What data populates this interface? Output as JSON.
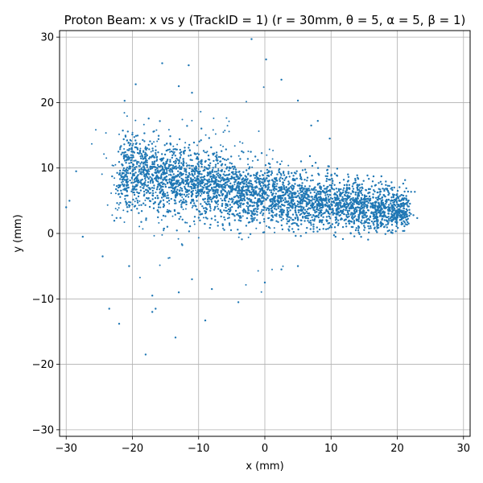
{
  "chart_data": {
    "type": "scatter",
    "title": "Proton Beam: x vs y (TrackID = 1) (r = 30mm, θ = 5, α = 5, β = 1)",
    "xlabel": "x (mm)",
    "ylabel": "y (mm)",
    "xlim": [
      -31,
      31
    ],
    "ylim": [
      -31,
      31
    ],
    "xticks": [
      -30,
      -20,
      -10,
      0,
      10,
      20,
      30
    ],
    "yticks": [
      -30,
      -20,
      -10,
      0,
      10,
      20,
      30
    ],
    "xtick_labels": [
      "−30",
      "−20",
      "−10",
      "0",
      "10",
      "20",
      "30"
    ],
    "ytick_labels": [
      "−30",
      "−20",
      "−10",
      "0",
      "10",
      "20",
      "30"
    ],
    "grid": true,
    "color": "#1f77b4",
    "series": [
      {
        "values": [
          {
            "x": -22.0,
            "y": 9.0
          },
          {
            "x": -20.0,
            "y": 9.5
          },
          {
            "x": -18.0,
            "y": 9.0
          },
          {
            "x": -16.0,
            "y": 8.5
          },
          {
            "x": -14.0,
            "y": 8.5
          },
          {
            "x": -12.0,
            "y": 8.0
          },
          {
            "x": -10.0,
            "y": 7.5
          },
          {
            "x": -8.0,
            "y": 7.0
          },
          {
            "x": -6.0,
            "y": 7.0
          },
          {
            "x": -4.0,
            "y": 6.5
          },
          {
            "x": -2.0,
            "y": 6.0
          },
          {
            "x": 0.0,
            "y": 6.0
          },
          {
            "x": 2.0,
            "y": 5.5
          },
          {
            "x": 4.0,
            "y": 5.5
          },
          {
            "x": 6.0,
            "y": 5.0
          },
          {
            "x": 8.0,
            "y": 5.0
          },
          {
            "x": 10.0,
            "y": 4.5
          },
          {
            "x": 12.0,
            "y": 4.5
          },
          {
            "x": 14.0,
            "y": 4.0
          },
          {
            "x": 16.0,
            "y": 4.0
          },
          {
            "x": 18.0,
            "y": 4.0
          },
          {
            "x": 20.0,
            "y": 3.5
          },
          {
            "x": 21.5,
            "y": 3.5
          },
          {
            "x": -19.5,
            "y": 22.8
          },
          {
            "x": -15.5,
            "y": 26.0
          },
          {
            "x": -11.5,
            "y": 25.7
          },
          {
            "x": -13.0,
            "y": 22.5
          },
          {
            "x": -11.0,
            "y": 21.5
          },
          {
            "x": -2.0,
            "y": 29.7
          },
          {
            "x": 0.2,
            "y": 26.6
          },
          {
            "x": 2.5,
            "y": 23.5
          },
          {
            "x": 5.0,
            "y": 20.3
          },
          {
            "x": 7.0,
            "y": 16.5
          },
          {
            "x": 9.8,
            "y": 14.5
          },
          {
            "x": 8.0,
            "y": 17.2
          },
          {
            "x": -30.0,
            "y": 4.0
          },
          {
            "x": -29.5,
            "y": 5.0
          },
          {
            "x": -27.5,
            "y": -0.5
          },
          {
            "x": -28.5,
            "y": 9.5
          },
          {
            "x": -24.5,
            "y": -3.5
          },
          {
            "x": -23.5,
            "y": -11.5
          },
          {
            "x": -22.0,
            "y": -13.8
          },
          {
            "x": -18.0,
            "y": -18.5
          },
          {
            "x": -17.0,
            "y": -12.0
          },
          {
            "x": -16.5,
            "y": -11.5
          },
          {
            "x": -13.5,
            "y": -15.9
          },
          {
            "x": -9.0,
            "y": -13.3
          },
          {
            "x": -4.0,
            "y": -10.5
          },
          {
            "x": -17.0,
            "y": -9.5
          },
          {
            "x": -13.0,
            "y": -9.0
          },
          {
            "x": -11.0,
            "y": -7.0
          },
          {
            "x": -8.0,
            "y": -8.5
          },
          {
            "x": 0.0,
            "y": -7.5
          },
          {
            "x": 2.5,
            "y": -5.5
          },
          {
            "x": 5.0,
            "y": -5.0
          },
          {
            "x": -20.5,
            "y": -5.0
          }
        ]
      }
    ]
  }
}
